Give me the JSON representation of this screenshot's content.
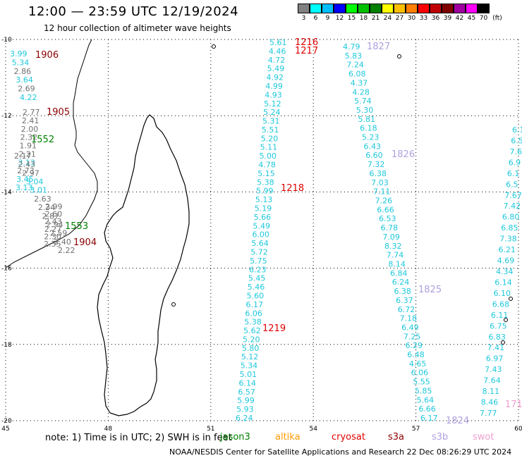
{
  "title": "12:00 — 23:59 UTC 12/19/2024",
  "subtitle": "12 hour collection of altimeter wave heights",
  "legend": {
    "unit": "(ft)",
    "bins": [
      {
        "label": "3",
        "color": "#808080"
      },
      {
        "label": "6",
        "color": "#00ffff"
      },
      {
        "label": "9",
        "color": "#00bfff"
      },
      {
        "label": "12",
        "color": "#0000ff"
      },
      {
        "label": "15",
        "color": "#00ff00"
      },
      {
        "label": "18",
        "color": "#00c000"
      },
      {
        "label": "21",
        "color": "#008000"
      },
      {
        "label": "24",
        "color": "#ffff00"
      },
      {
        "label": "27",
        "color": "#ffbf00"
      },
      {
        "label": "30",
        "color": "#ff8000"
      },
      {
        "label": "33",
        "color": "#ff0000"
      },
      {
        "label": "36",
        "color": "#c00000"
      },
      {
        "label": "39",
        "color": "#800000"
      },
      {
        "label": "42",
        "color": "#a000a0"
      },
      {
        "label": "45",
        "color": "#ff00ff"
      },
      {
        "label": "70",
        "color": "#000000"
      }
    ]
  },
  "axes": {
    "lon_ticks": [
      "45",
      "48",
      "51",
      "54",
      "57",
      "60"
    ],
    "lat_ticks": [
      "-10",
      "-12",
      "-14",
      "-16",
      "-18",
      "-20"
    ]
  },
  "colors": {
    "cyan": "#1ec8dc",
    "gray": "#707070",
    "red": "#e00000",
    "darkred": "#8b0000",
    "green": "#008000",
    "lavender": "#b0a0e0",
    "pink": "#f0a0d0",
    "orange": "#ff9900",
    "coast": "#000000"
  },
  "tracks": [
    {
      "name": "track-1906",
      "times": [
        {
          "text": "1906",
          "color": "darkred"
        }
      ],
      "values": [
        {
          "v": "3.99",
          "c": "cyan"
        },
        {
          "v": "5.34",
          "c": "cyan"
        },
        {
          "v": "2.86",
          "c": "gray"
        },
        {
          "v": "3.64",
          "c": "cyan"
        },
        {
          "v": "2.69",
          "c": "gray"
        },
        {
          "v": "4.22",
          "c": "cyan"
        }
      ]
    },
    {
      "name": "track-1905",
      "times": [
        {
          "text": "1905",
          "color": "darkred"
        }
      ],
      "values": [
        {
          "v": "2.77",
          "c": "gray"
        },
        {
          "v": "2.41",
          "c": "gray"
        },
        {
          "v": "2.00",
          "c": "gray"
        },
        {
          "v": "2.32",
          "c": "gray"
        },
        {
          "v": "1.91",
          "c": "gray"
        },
        {
          "v": "2.21",
          "c": "gray"
        },
        {
          "v": "3.13",
          "c": "cyan"
        },
        {
          "v": "2.73",
          "c": "gray"
        },
        {
          "v": "3.45",
          "c": "cyan"
        },
        {
          "v": "3.13",
          "c": "cyan"
        }
      ]
    },
    {
      "name": "track-1552",
      "times": [
        {
          "text": "1552",
          "color": "green"
        }
      ],
      "values": [
        {
          "v": "2.17",
          "c": "gray"
        },
        {
          "v": "2.43",
          "c": "gray"
        },
        {
          "v": "2.97",
          "c": "gray"
        },
        {
          "v": "3.04",
          "c": "cyan"
        },
        {
          "v": "3.01",
          "c": "cyan"
        },
        {
          "v": "2.63",
          "c": "gray"
        },
        {
          "v": "2.34",
          "c": "gray"
        },
        {
          "v": "2.87",
          "c": "gray"
        },
        {
          "v": "2.94",
          "c": "gray"
        },
        {
          "v": "2.59",
          "c": "gray"
        },
        {
          "v": "2.40",
          "c": "gray"
        },
        {
          "v": "2.22",
          "c": "gray"
        }
      ]
    },
    {
      "name": "track-1553",
      "times": [
        {
          "text": "1553",
          "color": "green"
        },
        {
          "text": "1904",
          "color": "darkred"
        }
      ],
      "values": [
        {
          "v": "2.99",
          "c": "gray"
        },
        {
          "v": "2.60",
          "c": "gray"
        },
        {
          "v": "2.43",
          "c": "gray"
        },
        {
          "v": "2.27",
          "c": "gray"
        },
        {
          "v": "2.30",
          "c": "gray"
        },
        {
          "v": "2.55",
          "c": "gray"
        }
      ]
    },
    {
      "name": "track-1216",
      "times": [
        {
          "text": "1216",
          "color": "red"
        },
        {
          "text": "1217",
          "color": "red"
        },
        {
          "text": "1218",
          "color": "red"
        },
        {
          "text": "1219",
          "color": "red"
        }
      ],
      "values": [
        {
          "v": "5.61",
          "c": "cyan"
        },
        {
          "v": "4.46",
          "c": "cyan"
        },
        {
          "v": "4.72",
          "c": "cyan"
        },
        {
          "v": "5.49",
          "c": "cyan"
        },
        {
          "v": "4.92",
          "c": "cyan"
        },
        {
          "v": "4.99",
          "c": "cyan"
        },
        {
          "v": "4.93",
          "c": "cyan"
        },
        {
          "v": "5.12",
          "c": "cyan"
        },
        {
          "v": "5.24",
          "c": "cyan"
        },
        {
          "v": "5.31",
          "c": "cyan"
        },
        {
          "v": "5.51",
          "c": "cyan"
        },
        {
          "v": "5.20",
          "c": "cyan"
        },
        {
          "v": "5.11",
          "c": "cyan"
        },
        {
          "v": "5.00",
          "c": "cyan"
        },
        {
          "v": "4.78",
          "c": "cyan"
        },
        {
          "v": "5.15",
          "c": "cyan"
        },
        {
          "v": "5.38",
          "c": "cyan"
        },
        {
          "v": "5.99",
          "c": "cyan"
        },
        {
          "v": "5.13",
          "c": "cyan"
        },
        {
          "v": "5.19",
          "c": "cyan"
        },
        {
          "v": "5.66",
          "c": "cyan"
        },
        {
          "v": "5.49",
          "c": "cyan"
        },
        {
          "v": "6.00",
          "c": "cyan"
        },
        {
          "v": "5.64",
          "c": "cyan"
        },
        {
          "v": "5.72",
          "c": "cyan"
        },
        {
          "v": "5.75",
          "c": "cyan"
        },
        {
          "v": "6.23",
          "c": "cyan"
        },
        {
          "v": "5.45",
          "c": "cyan"
        },
        {
          "v": "5.46",
          "c": "cyan"
        },
        {
          "v": "5.60",
          "c": "cyan"
        },
        {
          "v": "6.17",
          "c": "cyan"
        },
        {
          "v": "6.06",
          "c": "cyan"
        },
        {
          "v": "5.38",
          "c": "cyan"
        },
        {
          "v": "5.62",
          "c": "cyan"
        },
        {
          "v": "5.20",
          "c": "cyan"
        },
        {
          "v": "5.80",
          "c": "cyan"
        },
        {
          "v": "5.12",
          "c": "cyan"
        },
        {
          "v": "5.34",
          "c": "cyan"
        },
        {
          "v": "5.01",
          "c": "cyan"
        },
        {
          "v": "6.14",
          "c": "cyan"
        },
        {
          "v": "6.57",
          "c": "cyan"
        },
        {
          "v": "5.99",
          "c": "cyan"
        },
        {
          "v": "5.93",
          "c": "cyan"
        },
        {
          "v": "6.24",
          "c": "cyan"
        }
      ]
    },
    {
      "name": "track-1827",
      "times": [
        {
          "text": "1827",
          "color": "lavender"
        },
        {
          "text": "1826",
          "color": "lavender"
        },
        {
          "text": "1825",
          "color": "lavender"
        },
        {
          "text": "1824",
          "color": "lavender"
        }
      ],
      "values": [
        {
          "v": "4.79",
          "c": "cyan"
        },
        {
          "v": "5.83",
          "c": "cyan"
        },
        {
          "v": "7.24",
          "c": "cyan"
        },
        {
          "v": "6.08",
          "c": "cyan"
        },
        {
          "v": "4.37",
          "c": "cyan"
        },
        {
          "v": "4.28",
          "c": "cyan"
        },
        {
          "v": "5.74",
          "c": "cyan"
        },
        {
          "v": "5.30",
          "c": "cyan"
        },
        {
          "v": "5.81",
          "c": "cyan"
        },
        {
          "v": "6.18",
          "c": "cyan"
        },
        {
          "v": "5.23",
          "c": "cyan"
        },
        {
          "v": "6.43",
          "c": "cyan"
        },
        {
          "v": "6.60",
          "c": "cyan"
        },
        {
          "v": "7.32",
          "c": "cyan"
        },
        {
          "v": "6.38",
          "c": "cyan"
        },
        {
          "v": "7.03",
          "c": "cyan"
        },
        {
          "v": "7.11",
          "c": "cyan"
        },
        {
          "v": "7.26",
          "c": "cyan"
        },
        {
          "v": "6.66",
          "c": "cyan"
        },
        {
          "v": "6.53",
          "c": "cyan"
        },
        {
          "v": "6.78",
          "c": "cyan"
        },
        {
          "v": "7.09",
          "c": "cyan"
        },
        {
          "v": "8.32",
          "c": "cyan"
        },
        {
          "v": "7.74",
          "c": "cyan"
        },
        {
          "v": "8.14",
          "c": "cyan"
        },
        {
          "v": "6.84",
          "c": "cyan"
        },
        {
          "v": "6.24",
          "c": "cyan"
        },
        {
          "v": "6.38",
          "c": "cyan"
        },
        {
          "v": "6.37",
          "c": "cyan"
        },
        {
          "v": "6.72",
          "c": "cyan"
        },
        {
          "v": "7.18",
          "c": "cyan"
        },
        {
          "v": "6.49",
          "c": "cyan"
        },
        {
          "v": "7.25",
          "c": "cyan"
        },
        {
          "v": "6.29",
          "c": "cyan"
        },
        {
          "v": "6.48",
          "c": "cyan"
        },
        {
          "v": "4.65",
          "c": "cyan"
        },
        {
          "v": "6.06",
          "c": "cyan"
        },
        {
          "v": "5.55",
          "c": "cyan"
        },
        {
          "v": "5.85",
          "c": "cyan"
        },
        {
          "v": "5.64",
          "c": "cyan"
        },
        {
          "v": "6.66",
          "c": "cyan"
        },
        {
          "v": "6.17",
          "c": "cyan"
        }
      ]
    },
    {
      "name": "track-east",
      "times": [
        {
          "text": "171",
          "color": "pink"
        }
      ],
      "values": [
        {
          "v": "6.1",
          "c": "cyan"
        },
        {
          "v": "6.5",
          "c": "cyan"
        },
        {
          "v": "7.6",
          "c": "cyan"
        },
        {
          "v": "6.9",
          "c": "cyan"
        },
        {
          "v": "6.1",
          "c": "cyan"
        },
        {
          "v": "6.5",
          "c": "cyan"
        },
        {
          "v": "7.67",
          "c": "cyan"
        },
        {
          "v": "7.42",
          "c": "cyan"
        },
        {
          "v": "6.80",
          "c": "cyan"
        },
        {
          "v": "6.85",
          "c": "cyan"
        },
        {
          "v": "7.38",
          "c": "cyan"
        },
        {
          "v": "6.21",
          "c": "cyan"
        },
        {
          "v": "4.69",
          "c": "cyan"
        },
        {
          "v": "4.34",
          "c": "cyan"
        },
        {
          "v": "6.14",
          "c": "cyan"
        },
        {
          "v": "6.10",
          "c": "cyan"
        },
        {
          "v": "6.68",
          "c": "cyan"
        },
        {
          "v": "6.11",
          "c": "cyan"
        },
        {
          "v": "6.75",
          "c": "cyan"
        },
        {
          "v": "6.83",
          "c": "cyan"
        },
        {
          "v": "7.41",
          "c": "cyan"
        },
        {
          "v": "6.97",
          "c": "cyan"
        },
        {
          "v": "7.43",
          "c": "cyan"
        },
        {
          "v": "7.64",
          "c": "cyan"
        },
        {
          "v": "8.11",
          "c": "cyan"
        },
        {
          "v": "8.46",
          "c": "cyan"
        },
        {
          "v": "7.77",
          "c": "cyan"
        }
      ]
    }
  ],
  "note": "note:  1) Time is in UTC; 2) SWH is in feet",
  "satellites": [
    {
      "name": "jason3",
      "text": "jason3",
      "color": "#008000"
    },
    {
      "name": "altika",
      "text": "altika",
      "color": "#ff9900"
    },
    {
      "name": "cryosat",
      "text": "cryosat",
      "color": "#e00000"
    },
    {
      "name": "s3a",
      "text": "s3a",
      "color": "#8b0000"
    },
    {
      "name": "s3b",
      "text": "s3b",
      "color": "#b0a0e0"
    },
    {
      "name": "swot",
      "text": "swot",
      "color": "#f0a0d0"
    }
  ],
  "footer": "NOAA/NESDIS Center for Satellite Applications and Research    22 Dec 08:26:29 UTC 2024"
}
